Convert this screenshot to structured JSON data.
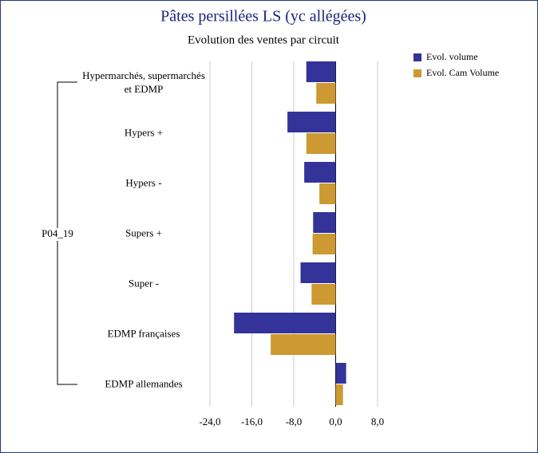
{
  "chart_data": {
    "type": "hbar",
    "title": "Pâtes persillées LS (yc allégées)",
    "subtitle": "Evolution des ventes par circuit",
    "group_label": "P04_19",
    "categories": [
      "Hypermarchés, supermarchés et EDMP",
      "Hypers +",
      "Hypers -",
      "Supers +",
      "Super -",
      "EDMP françaises",
      "EDMP allemandes"
    ],
    "series": [
      {
        "name": "Evol. volume",
        "color": "#333399",
        "values": [
          -5.6,
          -9.2,
          -6.0,
          -4.3,
          -6.7,
          -19.4,
          2.0
        ]
      },
      {
        "name": "Evol. Cam Volume",
        "color": "#cc9933",
        "values": [
          -3.7,
          -5.6,
          -3.1,
          -4.4,
          -4.6,
          -12.4,
          1.4
        ]
      }
    ],
    "xlim": [
      -24,
      8
    ],
    "xticks": [
      {
        "value": -24,
        "label": "-24,0"
      },
      {
        "value": -16,
        "label": "-16,0"
      },
      {
        "value": -8,
        "label": "-8,0"
      },
      {
        "value": 0,
        "label": "0,0"
      },
      {
        "value": 8,
        "label": "8,0"
      }
    ],
    "grid": true,
    "legend": "top-right"
  }
}
